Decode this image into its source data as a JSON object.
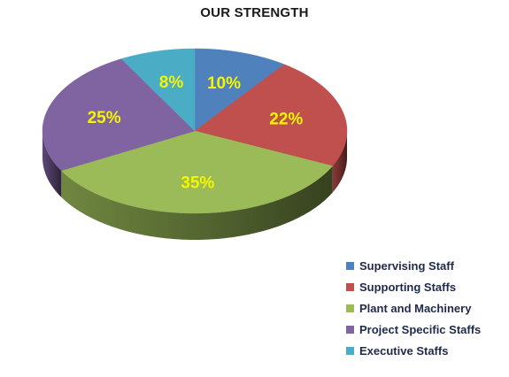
{
  "chart_data": {
    "type": "pie",
    "title": "OUR STRENGTH",
    "slices": [
      {
        "name": "Supervising Staff",
        "value": 10,
        "label": "10%",
        "color": "#4f81bd"
      },
      {
        "name": "Supporting Staffs",
        "value": 22,
        "label": "22%",
        "color": "#c0504d"
      },
      {
        "name": "Plant and Machinery",
        "value": 35,
        "label": "35%",
        "color": "#9bbb59"
      },
      {
        "name": "Project Specific Staffs",
        "value": 25,
        "label": "25%",
        "color": "#8064a2"
      },
      {
        "name": "Executive Staffs",
        "value": 8,
        "label": "8%",
        "color": "#4bacc6"
      }
    ],
    "legend_position": "bottom-right",
    "style": "3d"
  }
}
